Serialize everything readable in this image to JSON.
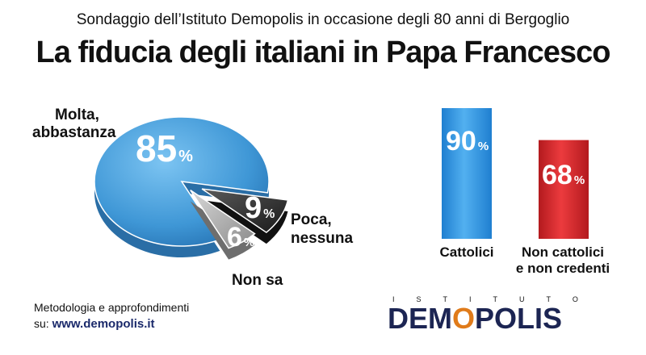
{
  "header": {
    "subtitle": "Sondaggio dell’Istituto Demopolis in occasione degli 80 anni di Bergoglio",
    "title": "La fiducia degli italiani in Papa Francesco"
  },
  "colors": {
    "pie_main": "#3f97d6",
    "pie_dark": "#2b2b2b",
    "pie_grey": "#9a9a9a",
    "bar_blue": "#2e93e0",
    "bar_red": "#d8262a",
    "logo_navy": "#1c2553",
    "logo_orange": "#e07b1a"
  },
  "chart_data": [
    {
      "type": "pie",
      "labels": [
        "Molta, abbastanza",
        "Poca, nessuna",
        "Non sa"
      ],
      "values": [
        85,
        9,
        6
      ],
      "label_lines": {
        "molta": [
          "Molta,",
          "abbastanza"
        ],
        "poca": [
          "Poca,",
          "nessuna"
        ],
        "nonsa": [
          "Non sa"
        ]
      },
      "value_labels": [
        "85",
        "9",
        "6"
      ],
      "unit": "%"
    },
    {
      "type": "bar",
      "categories": [
        "Cattolici",
        "Non cattolici e non credenti"
      ],
      "category_lines": [
        [
          "Cattolici"
        ],
        [
          "Non cattolici",
          "e non credenti"
        ]
      ],
      "values": [
        90,
        68
      ],
      "value_labels": [
        "90",
        "68"
      ],
      "unit": "%",
      "ylim": [
        0,
        100
      ]
    }
  ],
  "footer": {
    "line1": "Metodologia e approfondimenti",
    "prefix": "su: ",
    "url": "www.demopolis.it"
  },
  "logo": {
    "top": "ISTITUTO",
    "main_pre": "DEM",
    "main_o": "O",
    "main_post": "POLIS"
  }
}
